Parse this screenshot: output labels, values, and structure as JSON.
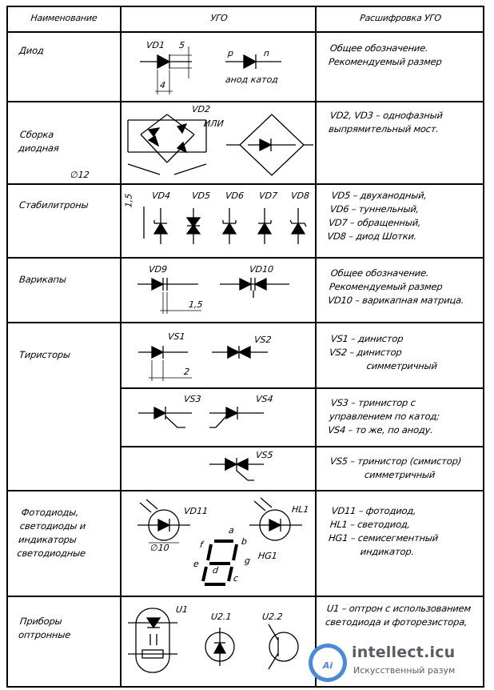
{
  "headers": {
    "name": "Наименование",
    "ugo": "УГО",
    "decoding": "Расшифровка УГО"
  },
  "rows": [
    {
      "name": "Диод",
      "decoding": "Общее обозначение.\nРекомендуемый размер"
    },
    {
      "name": "Сборка\nдиодная",
      "decoding": "VD2, VD3 – однофазный\nвыпрямительный мост."
    },
    {
      "name": "Стабилитроны",
      "decoding": "VD5 – двуханодный,\nVD6 – туннельный,\nVD7 – обращенный,\nVD8 – диод Шотки."
    },
    {
      "name": "Варикапы",
      "decoding": "Общее обозначение.\nРекомендуемый размер\nVD10 – варикапная матрица."
    },
    {
      "name": "Тиристоры",
      "decoding": "VS1 – динистор\nVS2 – динистор\n              симметричный"
    },
    {
      "name": "",
      "decoding": "VS3 – тринистор с\nуправлением по катод;\nVS4 – то же, по аноду."
    },
    {
      "name": "",
      "decoding": "VS5 – тринистор (симистор)\n             симметричный"
    },
    {
      "name": "Фотодиоды,\nсветодиоды и\nиндикаторы\nсветодиодные",
      "decoding": "VD11 – фотодиод,\nHL1 – светодиод,\nHG1 – семисегментный\n            индикатор."
    },
    {
      "name": "Приборы\nоптронные",
      "decoding": "U1 – оптрон с использованием\nсветодиода и фоторезистора,"
    }
  ],
  "labels": {
    "vd1": "VD1",
    "dim_h": "5",
    "dim_w": "4",
    "p": "p",
    "n": "n",
    "anode_cathode": "анод  катод",
    "vd2": "VD2",
    "ili": "ИЛИ",
    "size12": "∅12",
    "dim15": "1,5",
    "vd4": "VD4",
    "vd5": "VD5",
    "vd6": "VD6",
    "vd7": "VD7",
    "vd8": "VD8",
    "vd9": "VD9",
    "vd10": "VD10",
    "dim15b": "1,5",
    "vs1": "VS1",
    "vs2": "VS2",
    "dim2": "2",
    "vs3": "VS3",
    "vs4": "VS4",
    "vs5": "VS5",
    "vd11": "VD11",
    "size10": "∅10",
    "hl1": "HL1",
    "hg1": "HG1",
    "seg_a": "a",
    "seg_b": "b",
    "seg_c": "c",
    "seg_d": "d",
    "seg_e": "e",
    "seg_f": "f",
    "seg_g": "g",
    "u1": "U1",
    "u21": "U2.1",
    "u22": "U2.2"
  },
  "watermark": {
    "name": "intellect.icu",
    "sub": "Искусственный разум",
    "logo": "Ai"
  }
}
